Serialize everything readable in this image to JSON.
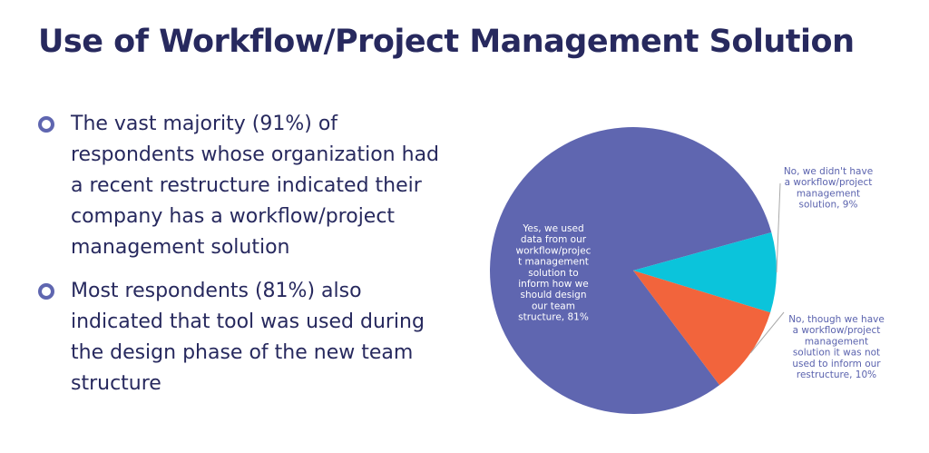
{
  "page": {
    "title": "Use of Workflow/Project Management Solution"
  },
  "bullets": [
    {
      "text": "The vast majority (91%) of respondents whose organization had a recent restructure indicated their company has a workflow/project management solution"
    },
    {
      "text": "Most  respondents (81%) also indicated that tool was used during the design phase of the new team structure"
    }
  ],
  "colors": {
    "title": "#27295e",
    "bullet_marker": "#5f66b0",
    "slice_yes": "#5f66b0",
    "slice_no_solution": "#0bc4db",
    "slice_not_used": "#f2643c",
    "callout_text": "#5b63ae"
  },
  "chart_data": {
    "type": "pie",
    "title": "",
    "slices": [
      {
        "label": "Yes, we used data from our workflow/project management solution to inform how we should design our team structure, 81%",
        "label_lines": [
          "Yes, we used",
          "data from our",
          "workflow/projec",
          "t management",
          "solution to",
          "inform how we",
          "should design",
          "our team",
          "structure, 81%"
        ],
        "value": 81,
        "color": "#5f66b0",
        "label_position": "inside"
      },
      {
        "label": "No, we didn't have a workflow/project management solution, 9%",
        "label_lines": [
          "No, we didn't have",
          "a workflow/project",
          "management",
          "solution, 9%"
        ],
        "value": 9,
        "color": "#0bc4db",
        "label_position": "outside-upper-right"
      },
      {
        "label": "No, though we have a workflow/project management solution it was not used to inform our restructure, 10%",
        "label_lines": [
          "No, though we have",
          "a workflow/project",
          "management",
          "solution it was not",
          "used to inform our",
          "restructure, 10%"
        ],
        "value": 10,
        "color": "#f2643c",
        "label_position": "outside-lower-right"
      }
    ]
  }
}
